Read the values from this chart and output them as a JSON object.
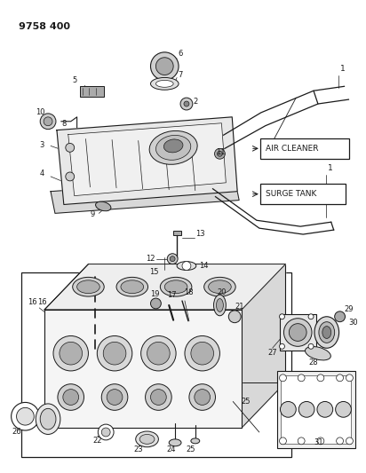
{
  "title": "9758 400",
  "bg_color": "#ffffff",
  "line_color": "#1a1a1a",
  "fig_width": 4.12,
  "fig_height": 5.33,
  "dpi": 100
}
